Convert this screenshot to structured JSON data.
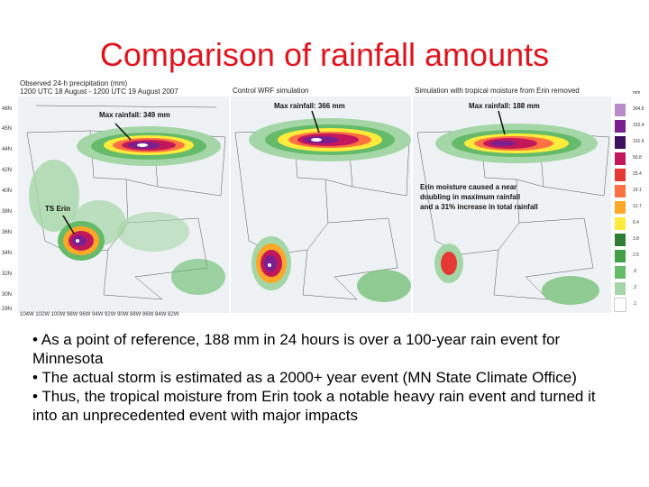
{
  "title": "Comparison of rainfall amounts",
  "panels": {
    "observed": {
      "caption_line1": "Observed 24-h precipitation (mm)",
      "caption_line2": "1200 UTC 18 August - 1200 UTC 19 August 2007",
      "max_label": "Max rainfall: 349 mm",
      "storm_label": "TS Erin",
      "latitudes": [
        "46N",
        "45N",
        "44N",
        "42N",
        "40N",
        "38N",
        "36N",
        "34N",
        "32N",
        "30N",
        "29N"
      ],
      "longitudes": "104W 102W 100W 98W 96W 94W 92W 90W 88W 86W 84W 82W"
    },
    "control": {
      "caption": "Control WRF simulation",
      "max_label": "Max rainfall: 366 mm"
    },
    "removed": {
      "caption": "Simulation with tropical moisture from Erin removed",
      "max_label": "Max rainfall: 188 mm",
      "note_line1": "Erin moisture caused a near",
      "note_line2": "doubling in maximum rainfall",
      "note_line3": "and a 31% increase in total rainfall"
    }
  },
  "legend": {
    "unit": "mm",
    "items": [
      {
        "label": "304.8",
        "color": "#b78cc8"
      },
      {
        "label": "152.4",
        "color": "#7a1f8f"
      },
      {
        "label": "101.6",
        "color": "#3d0f5e"
      },
      {
        "label": "50.8",
        "color": "#c2185b"
      },
      {
        "label": "25.4",
        "color": "#e53935"
      },
      {
        "label": "19.1",
        "color": "#ff7043"
      },
      {
        "label": "12.7",
        "color": "#ffa726"
      },
      {
        "label": "6.4",
        "color": "#ffeb3b"
      },
      {
        "label": "3.8",
        "color": "#2e7d32"
      },
      {
        "label": "2.5",
        "color": "#43a047"
      },
      {
        "label": ".5",
        "color": "#66bb6a"
      },
      {
        "label": ".2",
        "color": "#a5d6a7"
      },
      {
        "label": ".1",
        "color": "#ffffff"
      }
    ]
  },
  "bullets": [
    "• As a point of reference, 188 mm in 24 hours is over a 100-year rain event for Minnesota",
    "• The actual storm is estimated as a 2000+ year event (MN State Climate Office)",
    "• Thus, the tropical moisture from Erin took a notable heavy rain event and turned it into an unprecedented event with major impacts"
  ]
}
